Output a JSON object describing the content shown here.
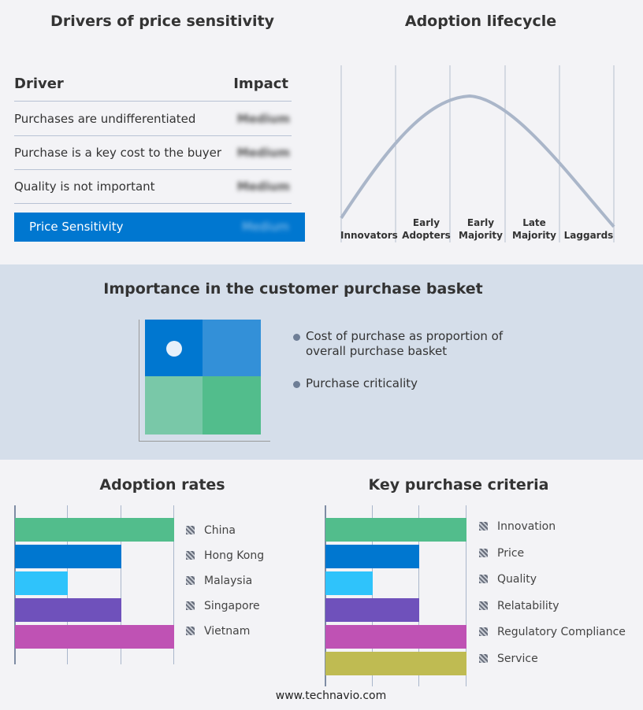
{
  "price_sensitivity": {
    "title": "Drivers of price sensitivity",
    "header": {
      "driver": "Driver",
      "impact": "Impact"
    },
    "rows": [
      {
        "driver": "Purchases are undifferentiated",
        "impact": "Medium"
      },
      {
        "driver": "Purchase is a key cost to the buyer",
        "impact": "Medium"
      },
      {
        "driver": "Quality is not important",
        "impact": "Medium"
      }
    ],
    "summary": {
      "label": "Price Sensitivity",
      "impact": "Medium"
    },
    "accent": "#0077d0"
  },
  "lifecycle": {
    "title": "Adoption lifecycle",
    "stages": [
      "Innovators",
      "Early Adopters",
      "Early Majority",
      "Late Majority",
      "Laggards"
    ]
  },
  "basket": {
    "title": "Importance in the customer purchase basket",
    "legend": [
      "Cost of purchase as proportion of overall purchase basket",
      "Purchase criticality"
    ],
    "colors": [
      "#0077d0",
      "#3390d8",
      "#79c8a8",
      "#52bd8c"
    ]
  },
  "chart_data": [
    {
      "type": "bar",
      "title": "Adoption rates",
      "orientation": "horizontal",
      "categories": [
        "China",
        "Hong Kong",
        "Malaysia",
        "Singapore",
        "Vietnam"
      ],
      "values": [
        3,
        2,
        1,
        2,
        3
      ],
      "xlim": [
        0,
        3
      ],
      "grid": true,
      "legend": "right",
      "colors": [
        "#52bd8c",
        "#0077d0",
        "#2fc3fb",
        "#6f51bb",
        "#bf52b4"
      ]
    },
    {
      "type": "bar",
      "title": "Key purchase criteria",
      "orientation": "horizontal",
      "categories": [
        "Innovation",
        "Price",
        "Quality",
        "Relatability",
        "Regulatory Compliance",
        "Service"
      ],
      "values": [
        3,
        2,
        1,
        2,
        3,
        3
      ],
      "xlim": [
        0,
        3
      ],
      "grid": true,
      "legend": "right",
      "colors": [
        "#52bd8c",
        "#0077d0",
        "#2fc3fb",
        "#6f51bb",
        "#bf52b4",
        "#bfbb52"
      ]
    }
  ],
  "footer": "www.technavio.com"
}
